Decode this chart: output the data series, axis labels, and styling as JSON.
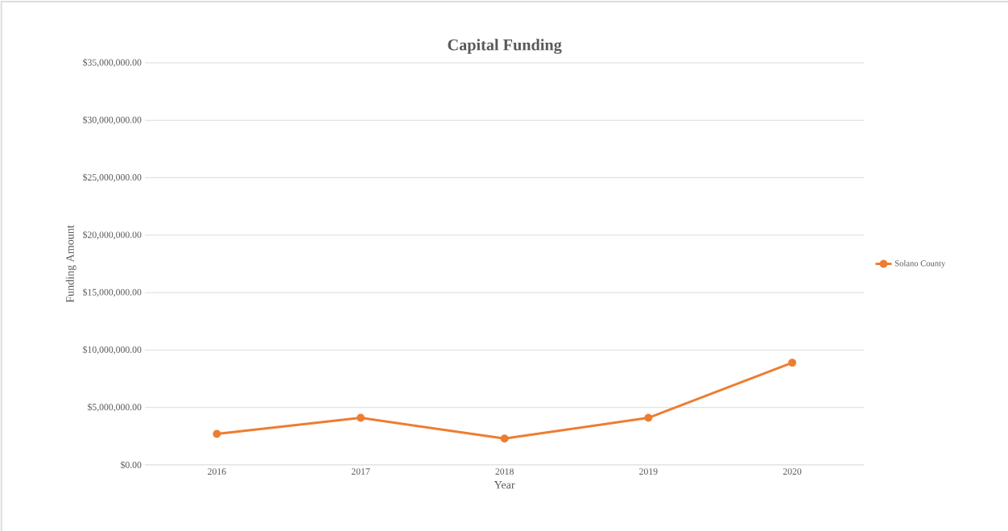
{
  "chart_data": {
    "type": "line",
    "title": "Capital Funding",
    "xlabel": "Year",
    "ylabel": "Funding Amount",
    "categories": [
      "2016",
      "2017",
      "2018",
      "2019",
      "2020"
    ],
    "series": [
      {
        "name": "Solano County",
        "color": "#ed7d31",
        "values": [
          2700000,
          4100000,
          2300000,
          4100000,
          8900000
        ]
      }
    ],
    "ylim": [
      0,
      35000000
    ],
    "yticks": [
      {
        "value": 0,
        "label": "$0.00"
      },
      {
        "value": 5000000,
        "label": "$5,000,000.00"
      },
      {
        "value": 10000000,
        "label": "$10,000,000.00"
      },
      {
        "value": 15000000,
        "label": "$15,000,000.00"
      },
      {
        "value": 20000000,
        "label": "$20,000,000.00"
      },
      {
        "value": 25000000,
        "label": "$25,000,000.00"
      },
      {
        "value": 30000000,
        "label": "$30,000,000.00"
      },
      {
        "value": 35000000,
        "label": "$35,000,000.00"
      }
    ],
    "grid": "y",
    "legend": "right",
    "marker": "circle",
    "line_style": "solid"
  }
}
